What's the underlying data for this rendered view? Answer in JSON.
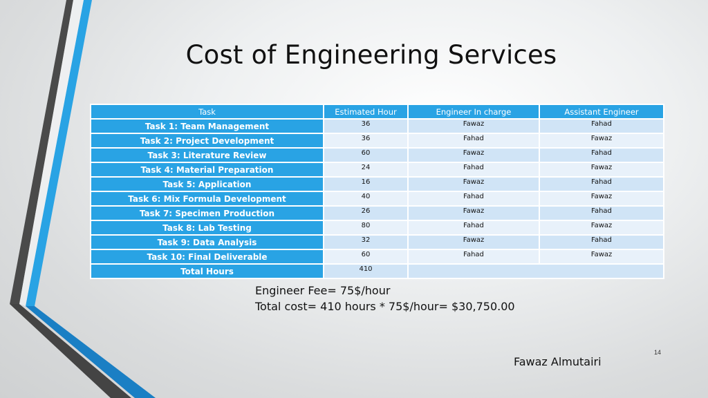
{
  "slide": {
    "title": "Cost of Engineering Services",
    "page_number": "14",
    "author": "Fawaz Almutairi"
  },
  "table": {
    "headers": [
      "Task",
      "Estimated Hour",
      "Engineer In charge",
      "Assistant Engineer"
    ],
    "rows": [
      {
        "task": "Task 1: Team Management",
        "hours": "36",
        "engineer": "Fawaz",
        "assistant": "Fahad"
      },
      {
        "task": "Task 2: Project Development",
        "hours": "36",
        "engineer": "Fahad",
        "assistant": "Fawaz"
      },
      {
        "task": "Task 3: Literature Review",
        "hours": "60",
        "engineer": "Fawaz",
        "assistant": "Fahad"
      },
      {
        "task": "Task 4: Material Preparation",
        "hours": "24",
        "engineer": "Fahad",
        "assistant": "Fawaz"
      },
      {
        "task": "Task 5: Application",
        "hours": "16",
        "engineer": "Fawaz",
        "assistant": "Fahad"
      },
      {
        "task": "Task 6: Mix Formula Development",
        "hours": "40",
        "engineer": "Fahad",
        "assistant": "Fawaz"
      },
      {
        "task": "Task 7: Specimen Production",
        "hours": "26",
        "engineer": "Fawaz",
        "assistant": "Fahad"
      },
      {
        "task": "Task 8: Lab Testing",
        "hours": "80",
        "engineer": "Fahad",
        "assistant": "Fawaz"
      },
      {
        "task": "Task 9: Data Analysis",
        "hours": "32",
        "engineer": "Fawaz",
        "assistant": "Fahad"
      },
      {
        "task": "Task 10: Final Deliverable",
        "hours": "60",
        "engineer": "Fahad",
        "assistant": "Fawaz"
      }
    ],
    "total": {
      "label": "Total Hours",
      "hours": "410"
    }
  },
  "cost": {
    "fee": "Engineer Fee= 75$/hour",
    "total": "Total cost= 410 hours * 75$/hour= $30,750.00"
  },
  "colors": {
    "header_fill": "#29a3e4",
    "row_light": "#e8f1fa",
    "row_mid": "#d0e4f6",
    "accent_blue": "#1d9de2",
    "accent_dark": "#444444"
  }
}
